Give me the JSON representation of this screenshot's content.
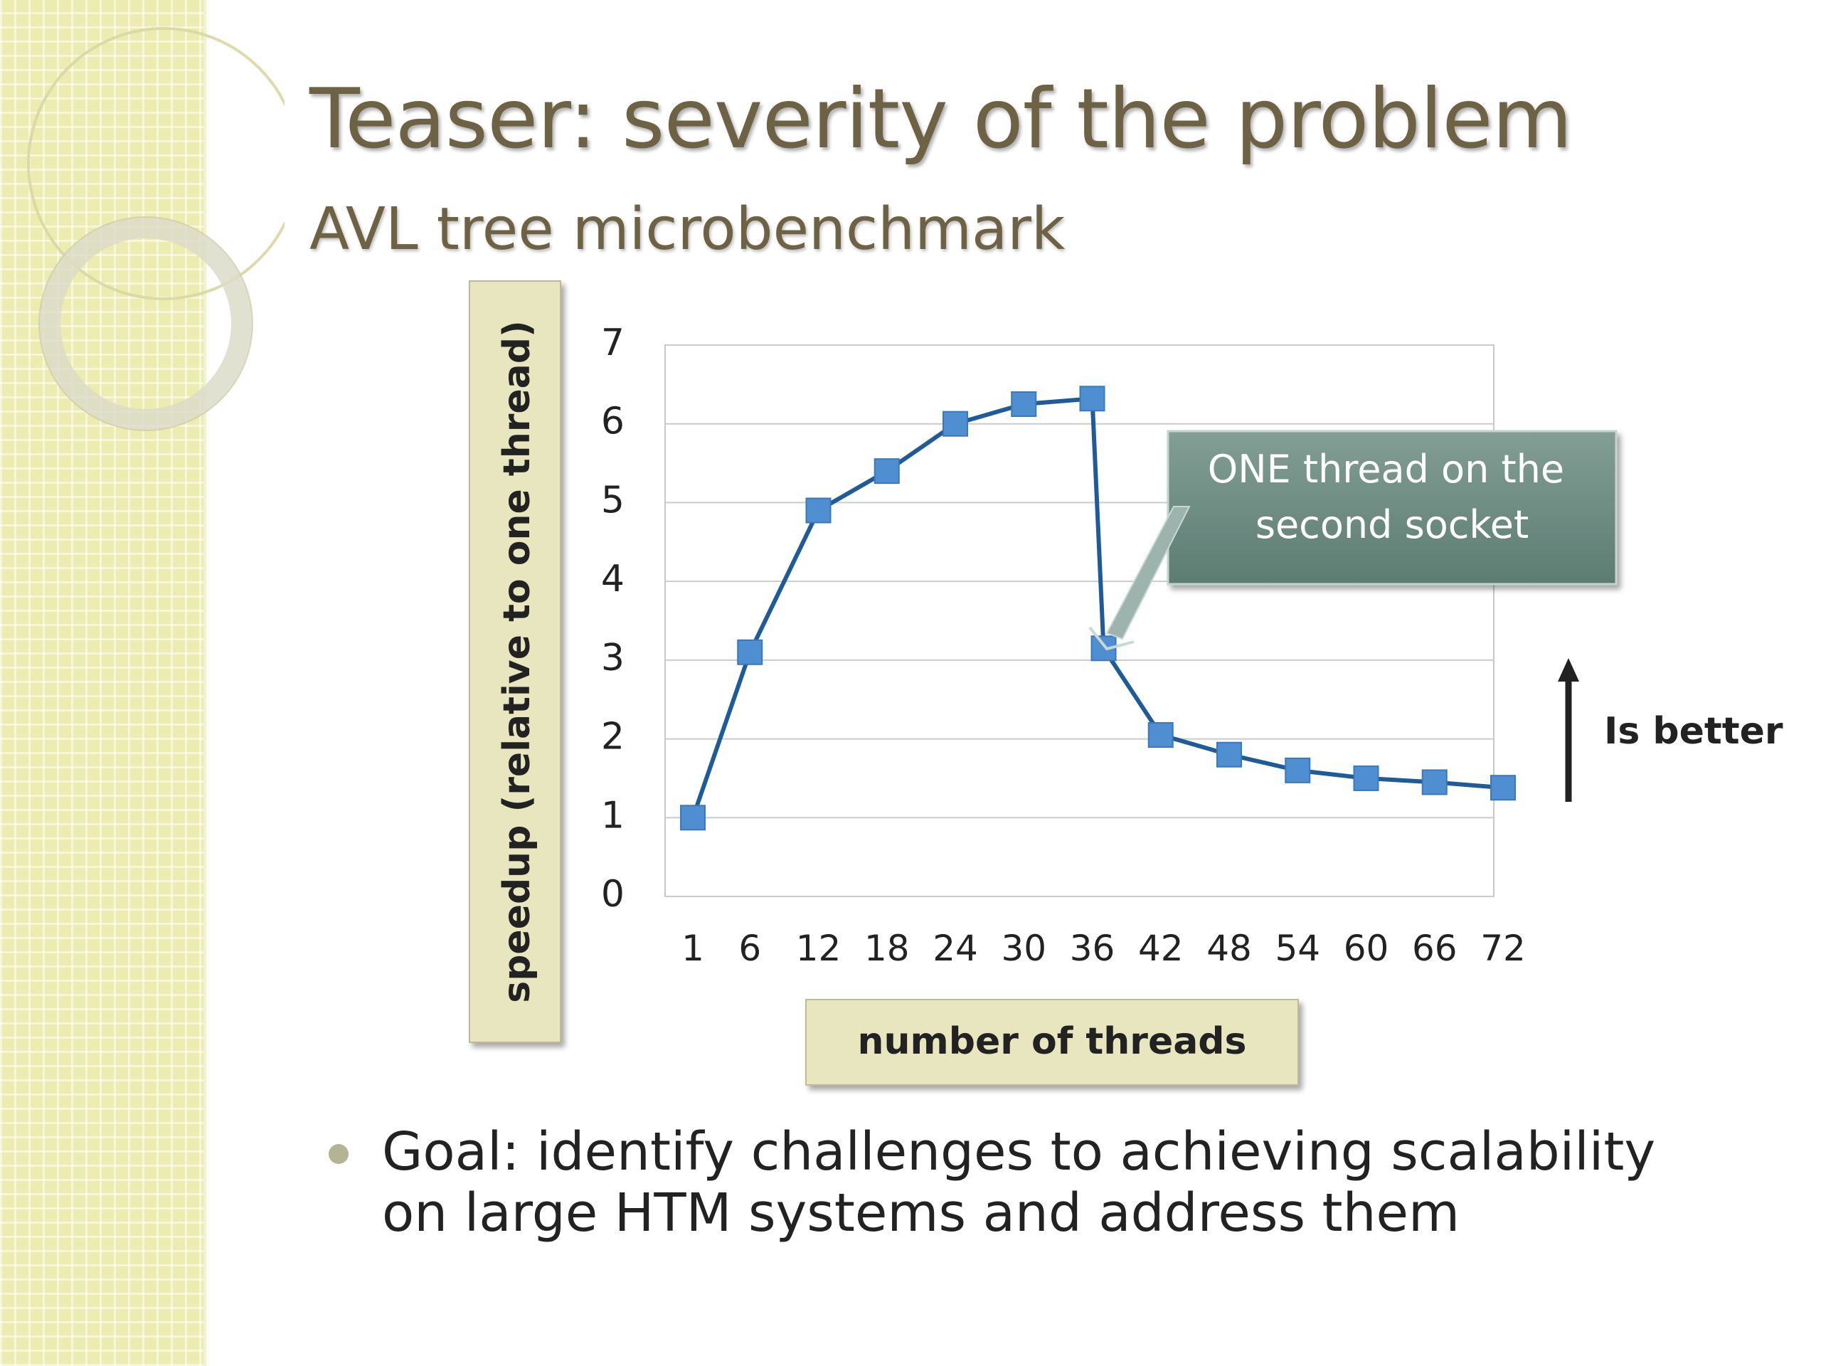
{
  "slide": {
    "title": "Teaser: severity of the problem",
    "subtitle": "AVL tree microbenchmark",
    "bullet": "Goal: identify challenges to achieving scalability on large HTM systems and address them"
  },
  "colors": {
    "sidebar": "#ecebb0",
    "title": "#6e6244",
    "series": "#1f5b99",
    "marker": "#4f8fd1",
    "axis_label_box": "#e8e6bf",
    "callout_box": "#6f8e84"
  },
  "annotations": {
    "callout": "ONE thread on the second socket",
    "better": "Is better",
    "better_icon": "up-arrow-icon"
  },
  "chart_data": {
    "type": "line",
    "x": [
      1,
      6,
      12,
      18,
      24,
      30,
      36,
      37,
      42,
      48,
      54,
      60,
      66,
      72
    ],
    "series": [
      {
        "values": [
          1.0,
          3.1,
          4.9,
          5.4,
          6.0,
          6.25,
          6.32,
          3.15,
          2.05,
          1.8,
          1.6,
          1.5,
          1.45,
          1.38
        ]
      }
    ],
    "xticks": [
      "1",
      "6",
      "12",
      "18",
      "24",
      "30",
      "36",
      "42",
      "48",
      "54",
      "60",
      "66",
      "72"
    ],
    "yticks": [
      "0",
      "1",
      "2",
      "3",
      "4",
      "5",
      "6",
      "7"
    ],
    "xlabel": "number of threads",
    "ylabel": "speedup (relative to one thread)",
    "xlim": [
      0,
      72
    ],
    "ylim": [
      0,
      7
    ],
    "grid": "horizontal",
    "legend": "none"
  }
}
